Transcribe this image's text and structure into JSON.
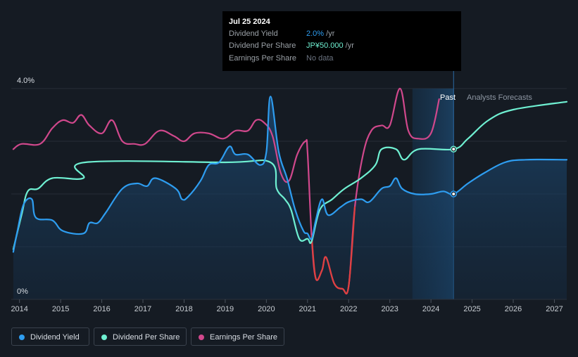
{
  "tooltip": {
    "date": "Jul 25 2024",
    "rows": [
      {
        "label": "Dividend Yield",
        "value": "2.0%",
        "unit": " /yr",
        "color": "#2e9df0"
      },
      {
        "label": "Dividend Per Share",
        "value": "JP¥50.000",
        "unit": " /yr",
        "color": "#6ff0d2"
      },
      {
        "label": "Earnings Per Share",
        "value": "No data",
        "unit": "",
        "color": "#6b7380"
      }
    ]
  },
  "legend": [
    {
      "label": "Dividend Yield",
      "color": "#2e9df0"
    },
    {
      "label": "Dividend Per Share",
      "color": "#6ff0d2"
    },
    {
      "label": "Earnings Per Share",
      "color": "#d0488c"
    }
  ],
  "chart_data": {
    "type": "line",
    "title": "",
    "xlabel": "",
    "ylabel": "",
    "ylim": [
      0,
      4.0
    ],
    "y_tick_labels": [
      "4.0%",
      "0%"
    ],
    "x_tick_labels": [
      "2014",
      "2015",
      "2016",
      "2017",
      "2018",
      "2019",
      "2020",
      "2021",
      "2022",
      "2023",
      "2024",
      "2025",
      "2026",
      "2027"
    ],
    "xlim": [
      2013.8,
      2027.3
    ],
    "past_label": "Past",
    "forecast_label": "Analysts Forecasts",
    "forecast_start": 2023.55,
    "today": 2024.55,
    "series": [
      {
        "name": "Dividend Yield",
        "color": "#2e9df0",
        "fill": true,
        "points": [
          [
            2013.85,
            0.9
          ],
          [
            2013.95,
            1.3
          ],
          [
            2014.1,
            1.8
          ],
          [
            2014.3,
            1.9
          ],
          [
            2014.4,
            1.55
          ],
          [
            2014.8,
            1.5
          ],
          [
            2015.05,
            1.3
          ],
          [
            2015.55,
            1.25
          ],
          [
            2015.7,
            1.45
          ],
          [
            2015.9,
            1.45
          ],
          [
            2016.1,
            1.65
          ],
          [
            2016.5,
            2.1
          ],
          [
            2016.85,
            2.2
          ],
          [
            2017.1,
            2.15
          ],
          [
            2017.3,
            2.3
          ],
          [
            2017.8,
            2.1
          ],
          [
            2017.95,
            1.9
          ],
          [
            2018.1,
            1.95
          ],
          [
            2018.4,
            2.25
          ],
          [
            2018.6,
            2.55
          ],
          [
            2018.85,
            2.6
          ],
          [
            2019.1,
            2.9
          ],
          [
            2019.25,
            2.75
          ],
          [
            2019.55,
            2.75
          ],
          [
            2019.85,
            2.55
          ],
          [
            2020.0,
            2.8
          ],
          [
            2020.1,
            3.85
          ],
          [
            2020.3,
            2.8
          ],
          [
            2020.5,
            2.3
          ],
          [
            2020.7,
            1.7
          ],
          [
            2020.9,
            1.3
          ],
          [
            2021.0,
            1.25
          ],
          [
            2021.1,
            1.15
          ],
          [
            2021.2,
            1.5
          ],
          [
            2021.35,
            1.9
          ],
          [
            2021.5,
            1.6
          ],
          [
            2021.8,
            1.75
          ],
          [
            2022.0,
            1.85
          ],
          [
            2022.3,
            1.9
          ],
          [
            2022.5,
            1.85
          ],
          [
            2022.8,
            2.1
          ],
          [
            2023.0,
            2.15
          ],
          [
            2023.15,
            2.3
          ],
          [
            2023.3,
            2.1
          ],
          [
            2023.6,
            2.0
          ],
          [
            2024.0,
            2.0
          ],
          [
            2024.3,
            2.05
          ],
          [
            2024.55,
            2.0
          ],
          [
            2024.9,
            2.2
          ],
          [
            2025.3,
            2.4
          ],
          [
            2025.8,
            2.6
          ],
          [
            2026.3,
            2.65
          ],
          [
            2027.3,
            2.65
          ]
        ]
      },
      {
        "name": "Dividend Per Share",
        "color": "#6ff0d2",
        "fill": false,
        "points": [
          [
            2013.85,
            0.95
          ],
          [
            2014.05,
            1.6
          ],
          [
            2014.2,
            2.05
          ],
          [
            2014.45,
            2.1
          ],
          [
            2014.8,
            2.3
          ],
          [
            2015.55,
            2.3
          ],
          [
            2015.6,
            2.6
          ],
          [
            2019.0,
            2.6
          ],
          [
            2020.1,
            2.6
          ],
          [
            2020.25,
            2.1
          ],
          [
            2020.45,
            1.9
          ],
          [
            2020.6,
            1.7
          ],
          [
            2020.8,
            1.15
          ],
          [
            2021.0,
            1.15
          ],
          [
            2021.1,
            1.1
          ],
          [
            2021.3,
            1.7
          ],
          [
            2021.6,
            1.9
          ],
          [
            2021.9,
            2.1
          ],
          [
            2022.3,
            2.3
          ],
          [
            2022.65,
            2.55
          ],
          [
            2022.8,
            2.85
          ],
          [
            2023.15,
            2.85
          ],
          [
            2023.35,
            2.65
          ],
          [
            2023.7,
            2.85
          ],
          [
            2024.55,
            2.85
          ],
          [
            2024.9,
            3.05
          ],
          [
            2025.4,
            3.4
          ],
          [
            2026.0,
            3.6
          ],
          [
            2027.3,
            3.75
          ]
        ]
      },
      {
        "name": "Earnings Per Share",
        "color": "#d0488c",
        "fill": false,
        "points": [
          [
            2013.85,
            2.85
          ],
          [
            2014.05,
            2.95
          ],
          [
            2014.5,
            2.95
          ],
          [
            2014.8,
            3.25
          ],
          [
            2015.05,
            3.4
          ],
          [
            2015.3,
            3.35
          ],
          [
            2015.5,
            3.5
          ],
          [
            2015.7,
            3.3
          ],
          [
            2016.0,
            3.15
          ],
          [
            2016.25,
            3.4
          ],
          [
            2016.5,
            3.0
          ],
          [
            2016.8,
            2.95
          ],
          [
            2017.05,
            2.95
          ],
          [
            2017.4,
            3.2
          ],
          [
            2017.75,
            3.1
          ],
          [
            2018.0,
            3.0
          ],
          [
            2018.25,
            3.15
          ],
          [
            2018.6,
            3.15
          ],
          [
            2018.95,
            3.05
          ],
          [
            2019.25,
            3.2
          ],
          [
            2019.55,
            3.2
          ],
          [
            2019.75,
            3.4
          ],
          [
            2019.95,
            3.35
          ],
          [
            2020.15,
            3.1
          ],
          [
            2020.35,
            2.4
          ],
          [
            2020.55,
            2.25
          ],
          [
            2020.75,
            2.75
          ],
          [
            2020.95,
            3.0
          ],
          [
            2021.0,
            2.8
          ],
          [
            2021.1,
            1.2
          ],
          [
            2021.2,
            0.4
          ],
          [
            2021.35,
            0.55
          ],
          [
            2021.45,
            0.8
          ],
          [
            2021.65,
            0.3
          ],
          [
            2021.85,
            0.2
          ],
          [
            2022.0,
            0.25
          ],
          [
            2022.15,
            1.75
          ],
          [
            2022.35,
            2.75
          ],
          [
            2022.55,
            3.2
          ],
          [
            2022.8,
            3.3
          ],
          [
            2023.0,
            3.3
          ],
          [
            2023.25,
            4.0
          ],
          [
            2023.45,
            3.2
          ],
          [
            2023.7,
            3.05
          ],
          [
            2024.0,
            3.15
          ],
          [
            2024.2,
            3.8
          ]
        ]
      }
    ],
    "markers": [
      {
        "series": "Dividend Per Share",
        "x": 2024.55,
        "y": 2.85
      },
      {
        "series": "Dividend Yield",
        "x": 2024.55,
        "y": 2.0
      }
    ]
  }
}
